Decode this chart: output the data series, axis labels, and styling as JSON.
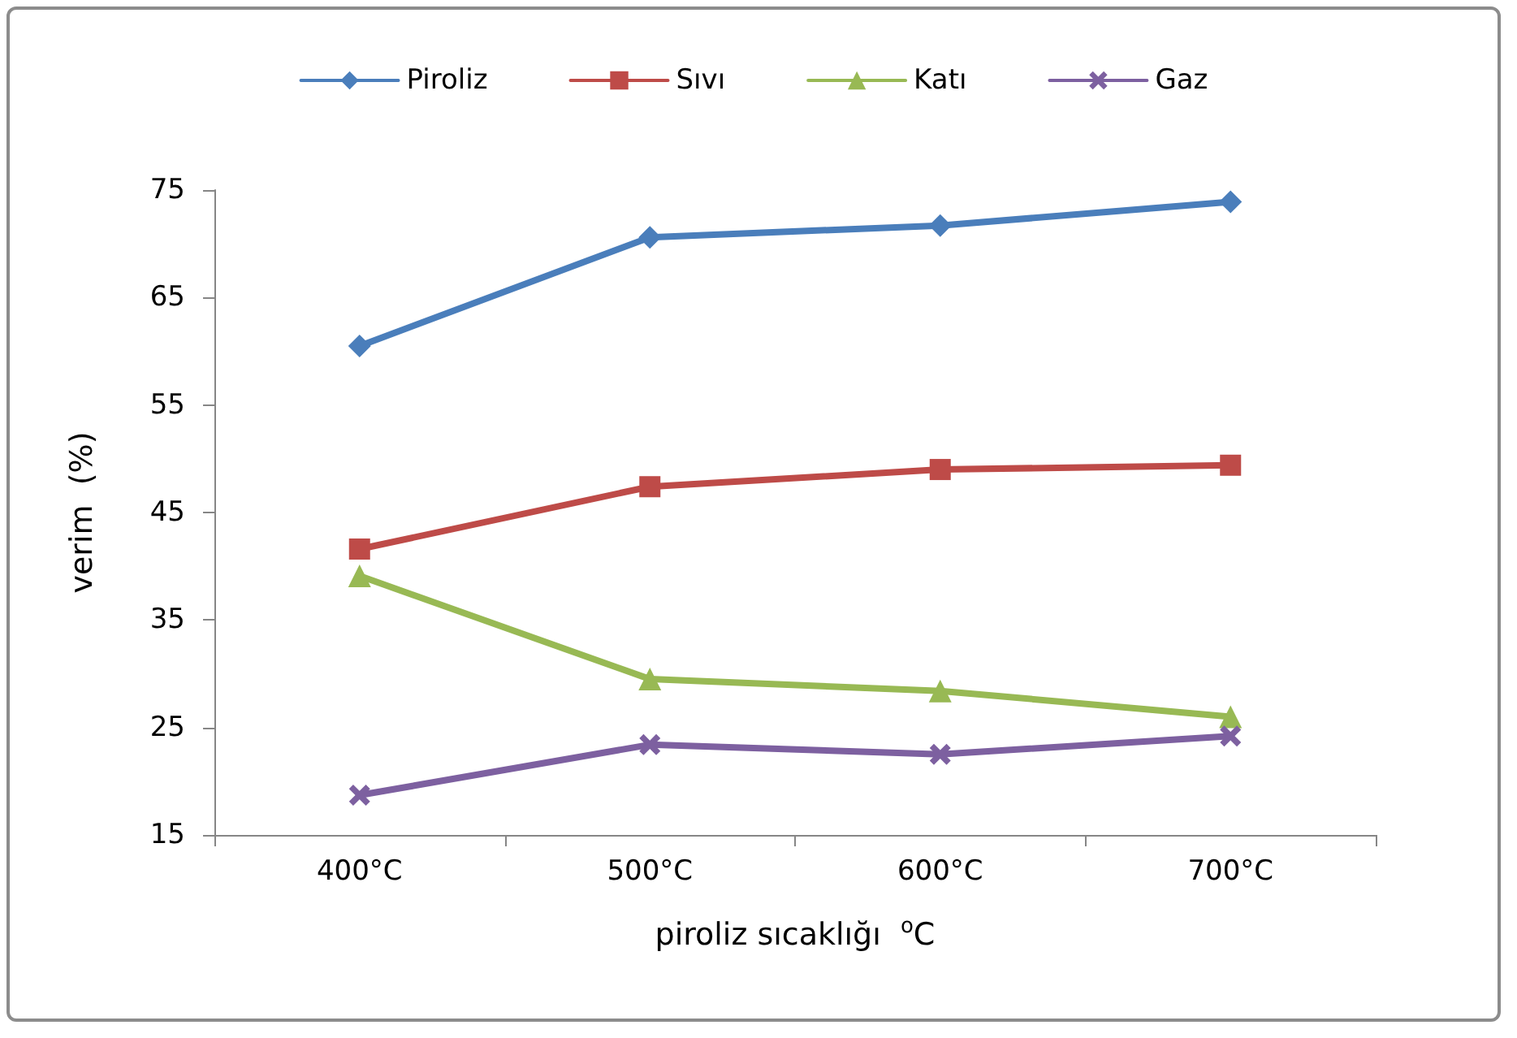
{
  "chart_data": {
    "type": "line",
    "xlabel": "piroliz sıcaklığı  $^{o}$C",
    "ylabel": "verim  (%)",
    "categories": [
      "400°C",
      "500°C",
      "600°C",
      "700°C"
    ],
    "series": [
      {
        "name": "Piroliz",
        "color": "#4a7ebb",
        "marker": "diamond",
        "values": [
          60.5,
          70.6,
          71.7,
          73.9
        ]
      },
      {
        "name": "Sıvı",
        "color": "#be4b48",
        "marker": "square",
        "values": [
          41.6,
          47.4,
          49.0,
          49.4
        ]
      },
      {
        "name": "Katı",
        "color": "#98b954",
        "marker": "triangle",
        "values": [
          39.1,
          29.5,
          28.4,
          26.0
        ]
      },
      {
        "name": "Gaz",
        "color": "#7d60a0",
        "marker": "cross",
        "values": [
          18.7,
          23.4,
          22.5,
          24.2
        ]
      }
    ],
    "ylim": [
      15,
      75
    ],
    "yticks": [
      15,
      25,
      35,
      45,
      55,
      65,
      75
    ],
    "grid": false,
    "legend": "top",
    "line_style": "solid"
  }
}
